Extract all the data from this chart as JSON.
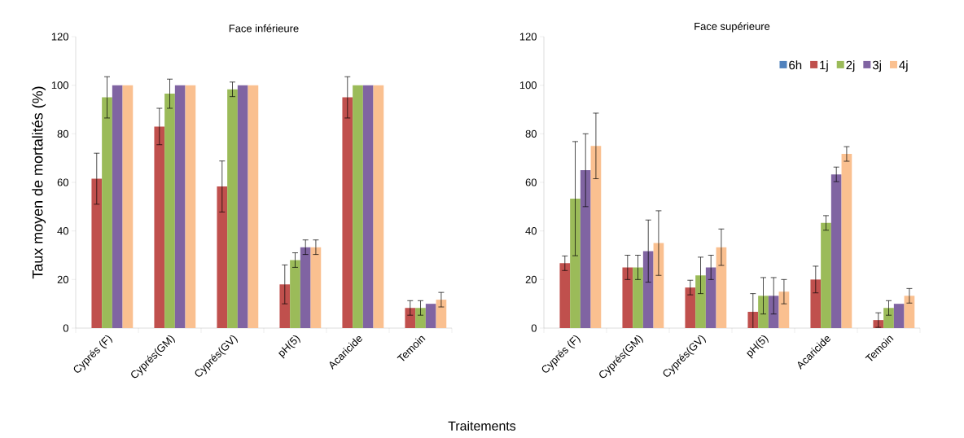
{
  "chart_data": [
    {
      "type": "bar",
      "title": "Face inférieure",
      "ylabel": "Taux moyen de mortalités (%)",
      "xlabel": "Traitements",
      "categories": [
        "Cyprés (F)",
        "Cyprés(GM)",
        "Cyprés(GV)",
        "pH(5)",
        "Acaricide",
        "Temoin"
      ],
      "ylim": [
        0,
        120
      ],
      "yticks": [
        0,
        20,
        40,
        60,
        80,
        100,
        120
      ],
      "legend": false,
      "series": [
        {
          "color": "#4f81bd",
          "values": [
            0,
            0,
            0,
            0,
            0,
            0
          ],
          "errors": [
            null,
            null,
            null,
            null,
            null,
            null
          ]
        },
        {
          "color": "#c0504d",
          "values": [
            61.5,
            83,
            58.3,
            18,
            95,
            8.3
          ],
          "errors": [
            10.5,
            7.5,
            10.5,
            8,
            8.5,
            3
          ]
        },
        {
          "color": "#9bbb59",
          "values": [
            95,
            96.5,
            98.3,
            28,
            100,
            8.3
          ],
          "errors": [
            8.5,
            6,
            3,
            3,
            null,
            3
          ]
        },
        {
          "color": "#8064a2",
          "values": [
            100,
            100,
            100,
            33.3,
            100,
            10
          ],
          "errors": [
            null,
            null,
            null,
            3,
            null,
            null
          ]
        },
        {
          "color": "#fac090",
          "values": [
            100,
            100,
            100,
            33.3,
            100,
            11.7
          ],
          "errors": [
            null,
            null,
            null,
            3,
            null,
            3
          ]
        }
      ]
    },
    {
      "type": "bar",
      "title": "Face supérieure",
      "categories": [
        "Cyprés (F)",
        "Cyprés(GM)",
        "Cyprés(GV)",
        "pH(5)",
        "Acaricide",
        "Temoin"
      ],
      "ylim": [
        0,
        120
      ],
      "yticks": [
        0,
        20,
        40,
        60,
        80,
        100,
        120
      ],
      "legend": "top right",
      "series": [
        {
          "name": "6h",
          "color": "#4f81bd",
          "values": [
            0,
            0,
            0,
            0,
            0,
            0
          ],
          "errors": [
            null,
            null,
            null,
            null,
            null,
            null
          ]
        },
        {
          "name": "1j",
          "color": "#c0504d",
          "values": [
            26.7,
            25,
            16.7,
            6.7,
            20,
            3.3
          ],
          "errors": [
            3,
            5,
            3,
            7.5,
            5.5,
            3
          ]
        },
        {
          "name": "2j",
          "color": "#9bbb59",
          "values": [
            53.3,
            25,
            21.7,
            13.3,
            43.3,
            8.3
          ],
          "errors": [
            23.5,
            5,
            7.5,
            7.5,
            3,
            3
          ]
        },
        {
          "name": "3j",
          "color": "#8064a2",
          "values": [
            65,
            31.7,
            25,
            13.3,
            63.3,
            10
          ],
          "errors": [
            15,
            12.8,
            5,
            7.5,
            3,
            null
          ]
        },
        {
          "name": "4j",
          "color": "#fac090",
          "values": [
            75,
            35,
            33.3,
            15,
            71.7,
            13.3
          ],
          "errors": [
            13.5,
            13.3,
            7.5,
            5,
            3,
            3
          ]
        }
      ]
    }
  ]
}
